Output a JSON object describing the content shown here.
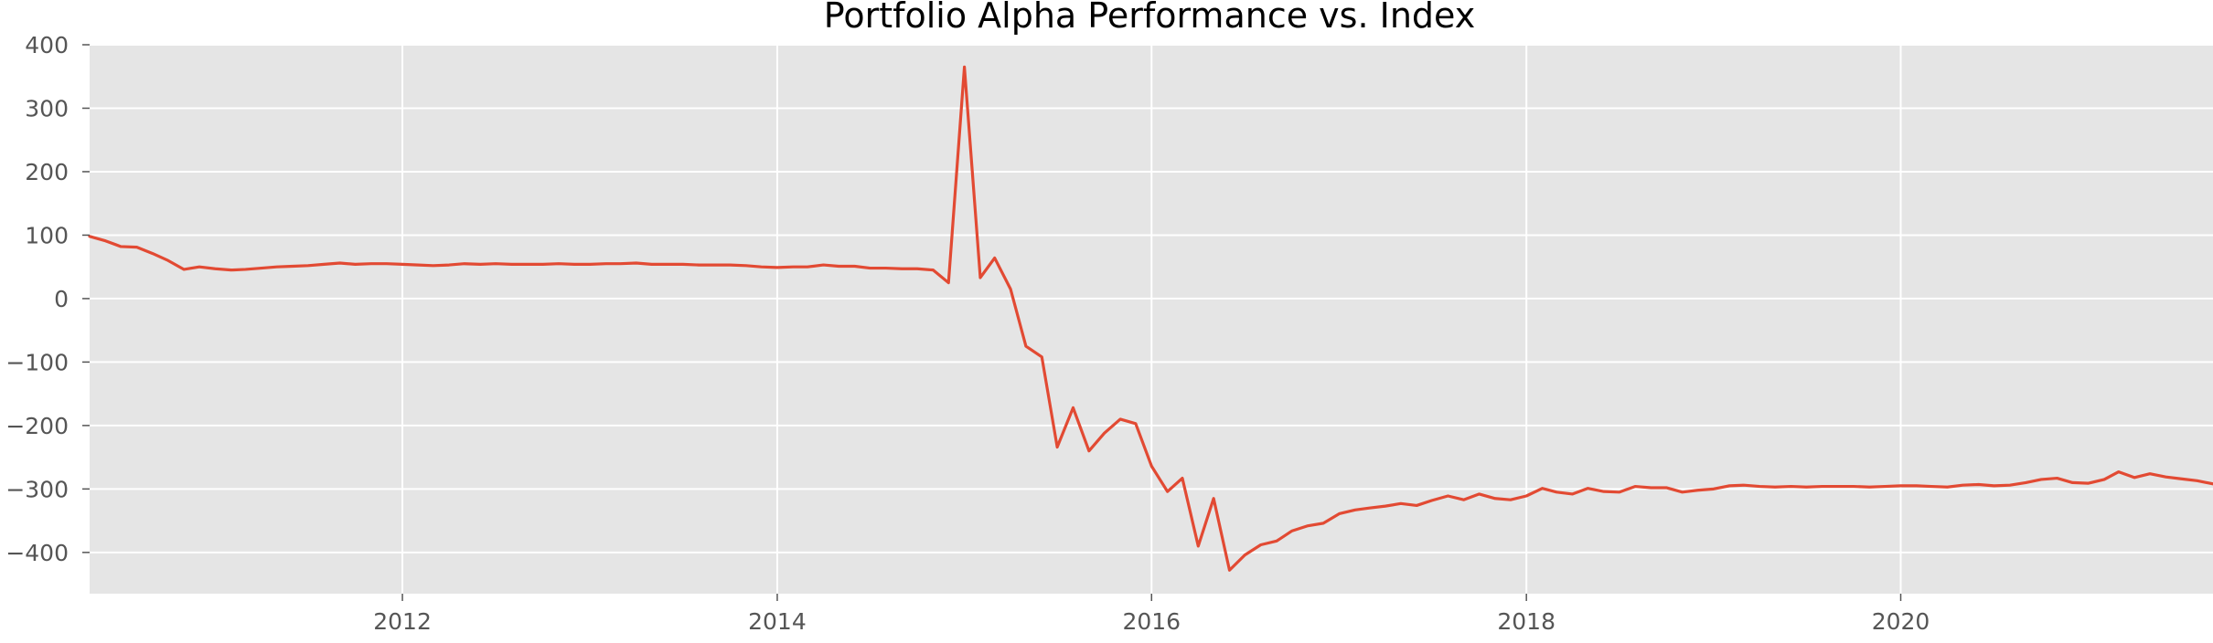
{
  "chart_data": {
    "type": "line",
    "title": "Portfolio Alpha Performance vs. Index",
    "xlabel": "",
    "ylabel": "",
    "xlim": [
      "2010-05-01",
      "2021-09-01"
    ],
    "ylim": [
      -465,
      400
    ],
    "grid": true,
    "legend": "none",
    "x_ticks": [
      "2012-01-01",
      "2014-01-01",
      "2016-01-01",
      "2018-01-01",
      "2020-01-01"
    ],
    "x_tick_labels": [
      "2012",
      "2014",
      "2016",
      "2018",
      "2020"
    ],
    "y_ticks": [
      400,
      300,
      200,
      100,
      0,
      -100,
      -200,
      -300,
      -400
    ],
    "y_tick_labels": [
      "400",
      "300",
      "200",
      "100",
      "0",
      "−100",
      "−200",
      "−300",
      "−400"
    ],
    "colors": {
      "plot_background": "#e5e5e5",
      "series": "#e24a33",
      "grid": "#ffffff"
    },
    "series": [
      {
        "x": [
          "2010-05-01",
          "2010-06-01",
          "2010-07-01",
          "2010-08-01",
          "2010-09-01",
          "2010-10-01",
          "2010-11-01",
          "2010-12-01",
          "2011-01-01",
          "2011-02-01",
          "2011-03-01",
          "2011-04-01",
          "2011-05-01",
          "2011-06-01",
          "2011-07-01",
          "2011-08-01",
          "2011-09-01",
          "2011-10-01",
          "2011-11-01",
          "2011-12-01",
          "2012-01-01",
          "2012-02-01",
          "2012-03-01",
          "2012-04-01",
          "2012-05-01",
          "2012-06-01",
          "2012-07-01",
          "2012-08-01",
          "2012-09-01",
          "2012-10-01",
          "2012-11-01",
          "2012-12-01",
          "2013-01-01",
          "2013-02-01",
          "2013-03-01",
          "2013-04-01",
          "2013-05-01",
          "2013-06-01",
          "2013-07-01",
          "2013-08-01",
          "2013-09-01",
          "2013-10-01",
          "2013-11-01",
          "2013-12-01",
          "2014-01-01",
          "2014-02-01",
          "2014-03-01",
          "2014-04-01",
          "2014-05-01",
          "2014-06-01",
          "2014-07-01",
          "2014-08-01",
          "2014-09-01",
          "2014-10-01",
          "2014-11-01",
          "2014-12-01",
          "2015-01-01",
          "2015-02-01",
          "2015-03-01",
          "2015-04-01",
          "2015-05-01",
          "2015-06-01",
          "2015-07-01",
          "2015-08-01",
          "2015-09-01",
          "2015-10-01",
          "2015-11-01",
          "2015-12-01",
          "2016-01-01",
          "2016-02-01",
          "2016-03-01",
          "2016-04-01",
          "2016-05-01",
          "2016-06-01",
          "2016-07-01",
          "2016-08-01",
          "2016-09-01",
          "2016-10-01",
          "2016-11-01",
          "2016-12-01",
          "2017-01-01",
          "2017-02-01",
          "2017-03-01",
          "2017-04-01",
          "2017-05-01",
          "2017-06-01",
          "2017-07-01",
          "2017-08-01",
          "2017-09-01",
          "2017-10-01",
          "2017-11-01",
          "2017-12-01",
          "2018-01-01",
          "2018-02-01",
          "2018-03-01",
          "2018-04-01",
          "2018-05-01",
          "2018-06-01",
          "2018-07-01",
          "2018-08-01",
          "2018-09-01",
          "2018-10-01",
          "2018-11-01",
          "2018-12-01",
          "2019-01-01",
          "2019-02-01",
          "2019-03-01",
          "2019-04-01",
          "2019-05-01",
          "2019-06-01",
          "2019-07-01",
          "2019-08-01",
          "2019-09-01",
          "2019-10-01",
          "2019-11-01",
          "2019-12-01",
          "2020-01-01",
          "2020-02-01",
          "2020-03-01",
          "2020-04-01",
          "2020-05-01",
          "2020-06-01",
          "2020-07-01",
          "2020-08-01",
          "2020-09-01",
          "2020-10-01",
          "2020-11-01",
          "2020-12-01",
          "2021-01-01",
          "2021-02-01",
          "2021-03-01",
          "2021-04-01",
          "2021-05-01",
          "2021-06-01",
          "2021-07-01",
          "2021-08-01",
          "2021-09-01"
        ],
        "values": [
          98,
          91,
          82,
          81,
          71,
          60,
          46,
          50,
          47,
          45,
          46,
          48,
          50,
          51,
          52,
          54,
          56,
          54,
          55,
          55,
          54,
          53,
          52,
          53,
          55,
          54,
          55,
          54,
          54,
          54,
          55,
          54,
          54,
          55,
          55,
          56,
          54,
          54,
          54,
          53,
          53,
          53,
          52,
          50,
          49,
          50,
          50,
          53,
          51,
          51,
          48,
          48,
          47,
          47,
          45,
          25,
          365,
          33,
          64,
          15,
          -75,
          -92,
          -234,
          -172,
          -240,
          -212,
          -190,
          -197,
          -264,
          -304,
          -283,
          -390,
          -315,
          -428,
          -404,
          -388,
          -382,
          -366,
          -358,
          -354,
          -339,
          -333,
          -330,
          -327,
          -323,
          -326,
          -318,
          -311,
          -317,
          -308,
          -315,
          -317,
          -311,
          -299,
          -305,
          -308,
          -299,
          -304,
          -305,
          -296,
          -298,
          -298,
          -305,
          -302,
          -300,
          -295,
          -294,
          -296,
          -297,
          -296,
          -297,
          -296,
          -296,
          -296,
          -297,
          -296,
          -295,
          -295,
          -296,
          -297,
          -294,
          -293,
          -295,
          -294,
          -290,
          -285,
          -283,
          -290,
          -291,
          -285,
          -273,
          -282,
          -276,
          -281,
          -284,
          -287,
          -292
        ]
      }
    ]
  }
}
